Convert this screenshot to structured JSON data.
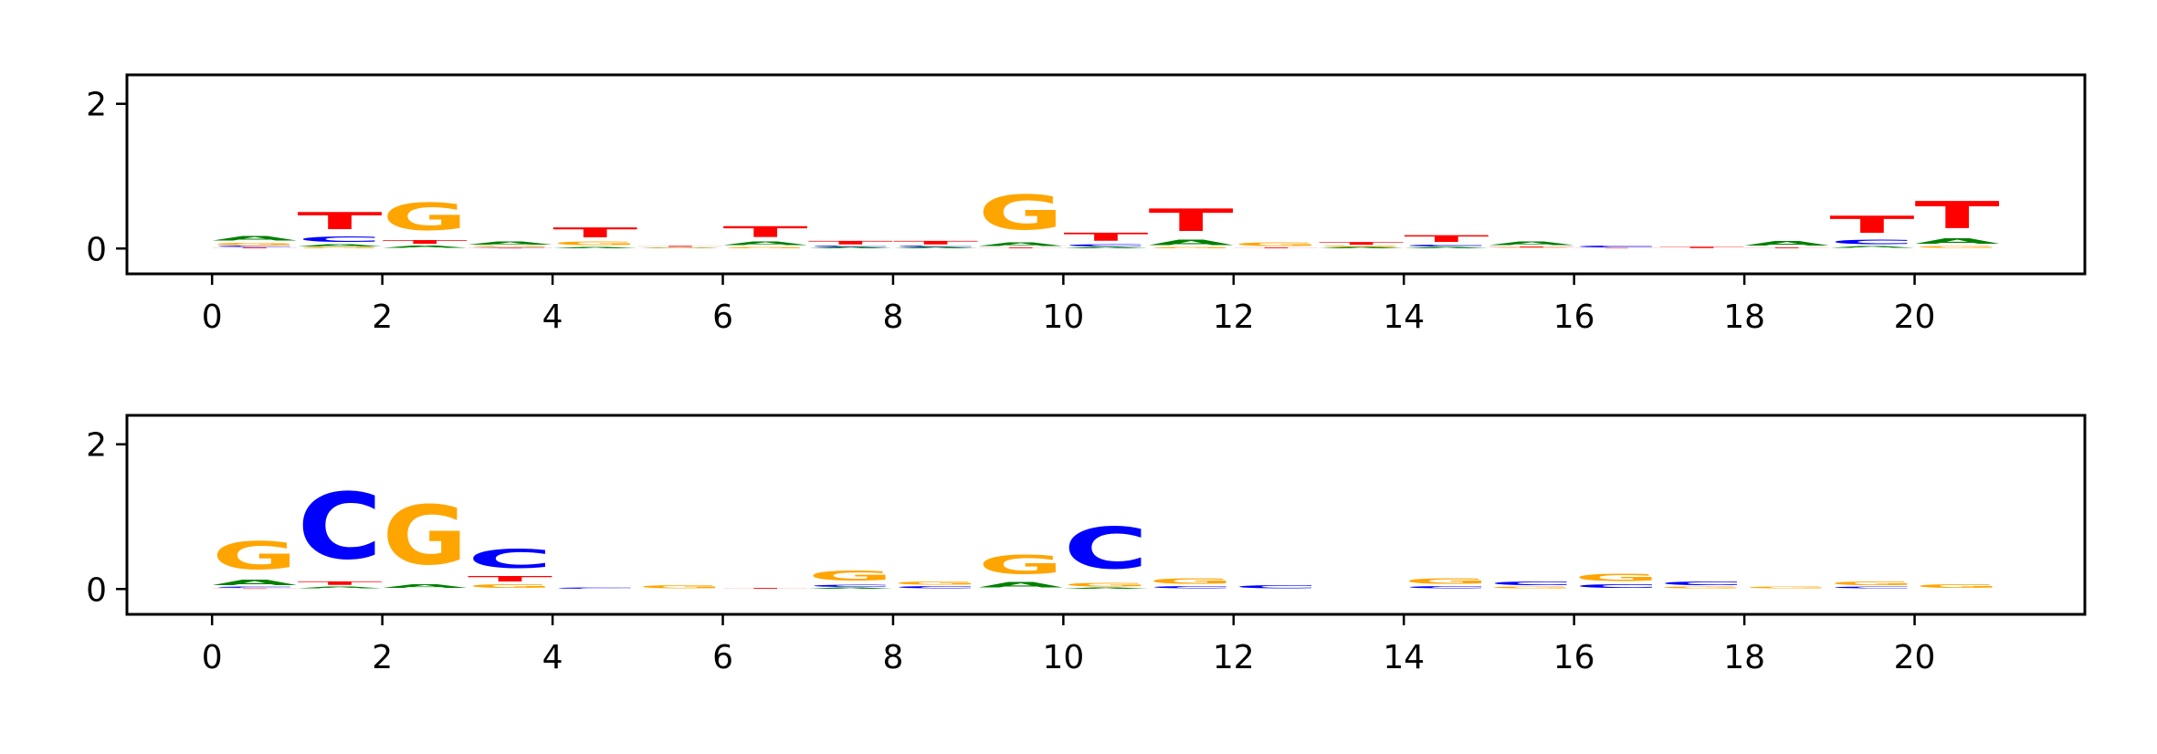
{
  "colors": {
    "A": "#008000",
    "C": "#0000ff",
    "G": "#ffa500",
    "T": "#ff0000",
    "axis": "#000000"
  },
  "chart_data": [
    {
      "type": "sequence-logo",
      "title": "",
      "xlabel": "",
      "ylabel": "",
      "xlim": [
        -1,
        22
      ],
      "ylim": [
        -0.35,
        2.4
      ],
      "xticks": [
        "0",
        "2",
        "4",
        "6",
        "8",
        "10",
        "12",
        "14",
        "16",
        "18",
        "20"
      ],
      "yticks": [
        "0",
        "2"
      ],
      "positions": [
        {
          "x": 0,
          "letters": [
            [
              "T",
              0.02
            ],
            [
              "C",
              0.02
            ],
            [
              "G",
              0.05
            ],
            [
              "A",
              0.1
            ]
          ]
        },
        {
          "x": 1,
          "letters": [
            [
              "G",
              0.02
            ],
            [
              "A",
              0.05
            ],
            [
              "C",
              0.12
            ],
            [
              "T",
              0.38
            ]
          ]
        },
        {
          "x": 2,
          "letters": [
            [
              "A",
              0.05
            ],
            [
              "T",
              0.08
            ],
            [
              "G",
              0.6
            ]
          ]
        },
        {
          "x": 3,
          "letters": [
            [
              "T",
              0.01
            ],
            [
              "C",
              0.01
            ],
            [
              "G",
              0.02
            ],
            [
              "A",
              0.06
            ]
          ]
        },
        {
          "x": 4,
          "letters": [
            [
              "A",
              0.03
            ],
            [
              "G",
              0.08
            ],
            [
              "T",
              0.22
            ]
          ]
        },
        {
          "x": 5,
          "letters": [
            [
              "G",
              0.01
            ],
            [
              "A",
              0.01
            ],
            [
              "T",
              0.02
            ]
          ]
        },
        {
          "x": 6,
          "letters": [
            [
              "G",
              0.03
            ],
            [
              "A",
              0.08
            ],
            [
              "T",
              0.24
            ]
          ]
        },
        {
          "x": 7,
          "letters": [
            [
              "A",
              0.02
            ],
            [
              "C",
              0.02
            ],
            [
              "T",
              0.08
            ]
          ]
        },
        {
          "x": 8,
          "letters": [
            [
              "A",
              0.02
            ],
            [
              "C",
              0.02
            ],
            [
              "T",
              0.08
            ]
          ]
        },
        {
          "x": 9,
          "letters": [
            [
              "T",
              0.02
            ],
            [
              "A",
              0.08
            ],
            [
              "G",
              0.78
            ]
          ]
        },
        {
          "x": 10,
          "letters": [
            [
              "A",
              0.02
            ],
            [
              "C",
              0.05
            ],
            [
              "T",
              0.18
            ]
          ]
        },
        {
          "x": 11,
          "letters": [
            [
              "G",
              0.02
            ],
            [
              "A",
              0.12
            ],
            [
              "T",
              0.5
            ]
          ]
        },
        {
          "x": 12,
          "letters": [
            [
              "T",
              0.02
            ],
            [
              "G",
              0.08
            ]
          ]
        },
        {
          "x": 13,
          "letters": [
            [
              "A",
              0.02
            ],
            [
              "G",
              0.02
            ],
            [
              "T",
              0.06
            ]
          ]
        },
        {
          "x": 14,
          "letters": [
            [
              "A",
              0.02
            ],
            [
              "C",
              0.04
            ],
            [
              "T",
              0.15
            ]
          ]
        },
        {
          "x": 15,
          "letters": [
            [
              "G",
              0.01
            ],
            [
              "T",
              0.02
            ],
            [
              "A",
              0.08
            ]
          ]
        },
        {
          "x": 16,
          "letters": [
            [
              "T",
              0.01
            ],
            [
              "C",
              0.04
            ]
          ]
        },
        {
          "x": 17,
          "letters": [
            [
              "T",
              0.03
            ]
          ]
        },
        {
          "x": 18,
          "letters": [
            [
              "T",
              0.02
            ],
            [
              "A",
              0.1
            ]
          ]
        },
        {
          "x": 19,
          "letters": [
            [
              "A",
              0.04
            ],
            [
              "C",
              0.1
            ],
            [
              "T",
              0.38
            ]
          ]
        },
        {
          "x": 20,
          "letters": [
            [
              "G",
              0.04
            ],
            [
              "A",
              0.12
            ],
            [
              "T",
              0.6
            ]
          ]
        }
      ]
    },
    {
      "type": "sequence-logo",
      "title": "",
      "xlabel": "",
      "ylabel": "",
      "xlim": [
        -1,
        22
      ],
      "ylim": [
        -0.35,
        2.4
      ],
      "xticks": [
        "0",
        "2",
        "4",
        "6",
        "8",
        "10",
        "12",
        "14",
        "16",
        "18",
        "20"
      ],
      "yticks": [
        "0",
        "2"
      ],
      "positions": [
        {
          "x": 0,
          "letters": [
            [
              "T",
              0.01
            ],
            [
              "C",
              0.02
            ],
            [
              "A",
              0.12
            ],
            [
              "G",
              0.62
            ]
          ]
        },
        {
          "x": 1,
          "letters": [
            [
              "A",
              0.04
            ],
            [
              "T",
              0.08
            ],
            [
              "C",
              1.48
            ]
          ]
        },
        {
          "x": 2,
          "letters": [
            [
              "A",
              0.08
            ],
            [
              "G",
              1.32
            ]
          ]
        },
        {
          "x": 3,
          "letters": [
            [
              "G",
              0.08
            ],
            [
              "T",
              0.12
            ],
            [
              "C",
              0.42
            ]
          ]
        },
        {
          "x": 4,
          "letters": [
            [
              "C",
              0.02
            ]
          ]
        },
        {
          "x": 5,
          "letters": [
            [
              "G",
              0.06
            ]
          ]
        },
        {
          "x": 6,
          "letters": [
            [
              "T",
              0.02
            ]
          ]
        },
        {
          "x": 7,
          "letters": [
            [
              "A",
              0.02
            ],
            [
              "C",
              0.05
            ],
            [
              "G",
              0.22
            ]
          ]
        },
        {
          "x": 8,
          "letters": [
            [
              "C",
              0.05
            ],
            [
              "G",
              0.06
            ]
          ]
        },
        {
          "x": 9,
          "letters": [
            [
              "A",
              0.12
            ],
            [
              "G",
              0.42
            ]
          ]
        },
        {
          "x": 10,
          "letters": [
            [
              "A",
              0.02
            ],
            [
              "G",
              0.08
            ],
            [
              "C",
              0.92
            ]
          ]
        },
        {
          "x": 11,
          "letters": [
            [
              "C",
              0.05
            ],
            [
              "G",
              0.12
            ]
          ]
        },
        {
          "x": 12,
          "letters": [
            [
              "C",
              0.06
            ]
          ]
        },
        {
          "x": 13,
          "letters": []
        },
        {
          "x": 14,
          "letters": [
            [
              "C",
              0.05
            ],
            [
              "G",
              0.12
            ]
          ]
        },
        {
          "x": 15,
          "letters": [
            [
              "G",
              0.04
            ],
            [
              "C",
              0.08
            ]
          ]
        },
        {
          "x": 16,
          "letters": [
            [
              "C",
              0.08
            ],
            [
              "G",
              0.16
            ]
          ]
        },
        {
          "x": 17,
          "letters": [
            [
              "G",
              0.04
            ],
            [
              "C",
              0.08
            ]
          ]
        },
        {
          "x": 18,
          "letters": [
            [
              "G",
              0.04
            ]
          ]
        },
        {
          "x": 19,
          "letters": [
            [
              "C",
              0.04
            ],
            [
              "G",
              0.08
            ]
          ]
        },
        {
          "x": 20,
          "letters": [
            [
              "G",
              0.08
            ]
          ]
        }
      ]
    }
  ]
}
